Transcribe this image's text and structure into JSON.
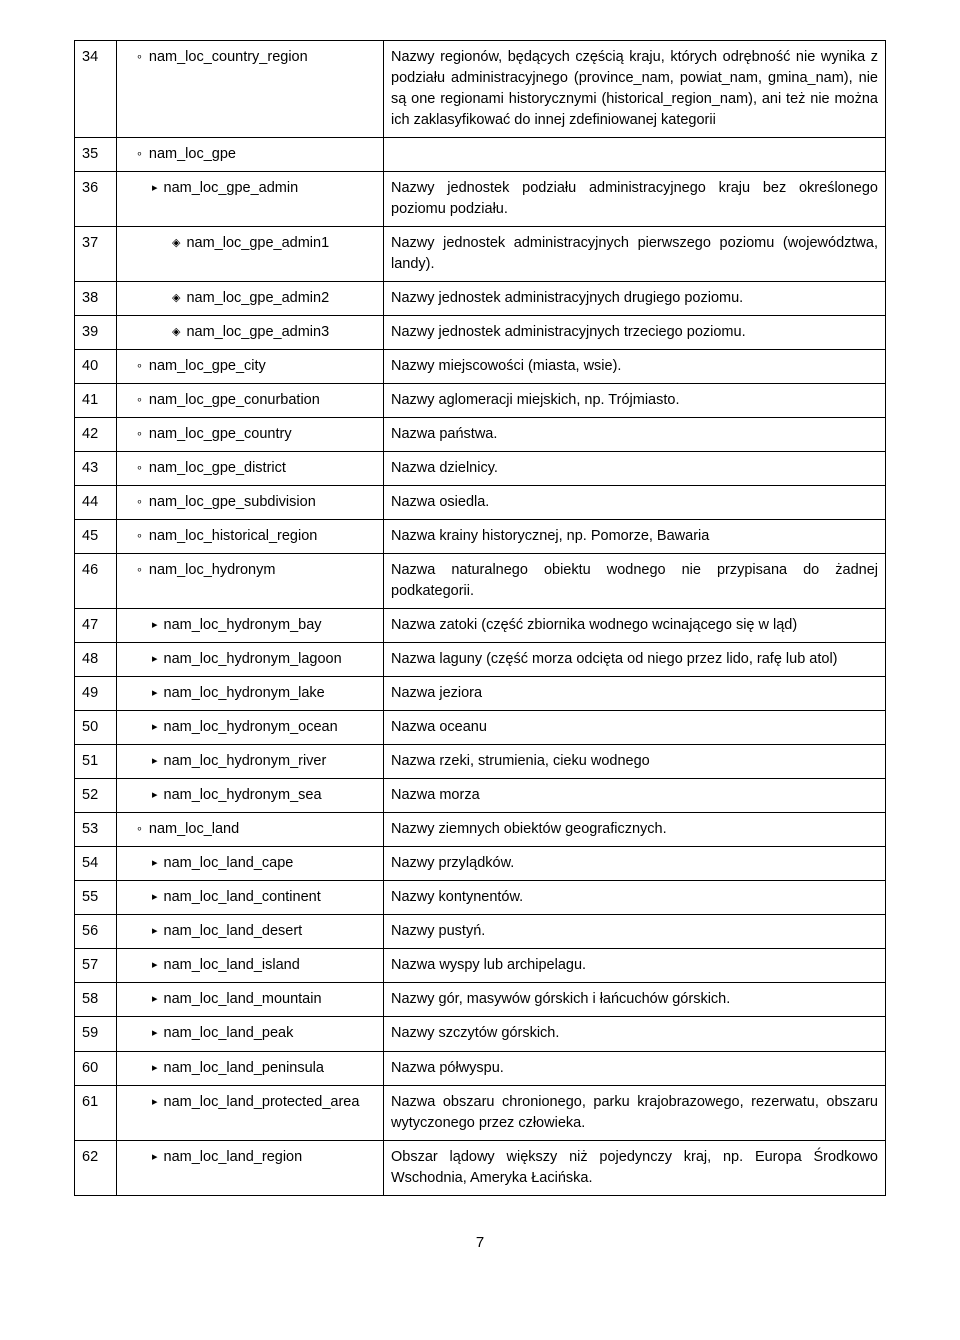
{
  "page_number": "7",
  "bullet_glyphs": {
    "circle": "∘",
    "triangle": "▸",
    "diamond": "◈"
  },
  "rows": [
    {
      "num": "34",
      "indent": 0,
      "bullet": "circle",
      "name": "nam_loc_country_region",
      "desc": "Nazwy regionów, będących częścią kraju, których odrębność nie wynika z podziału administracyjnego (province_nam, powiat_nam, gmina_nam), nie są one regionami historycznymi (historical_region_nam), ani też nie można ich zaklasyfikować do innej zdefiniowanej kategorii",
      "justify": true
    },
    {
      "num": "35",
      "indent": 0,
      "bullet": "circle",
      "name": "nam_loc_gpe",
      "desc": ""
    },
    {
      "num": "36",
      "indent": 1,
      "bullet": "triangle",
      "name": "nam_loc_gpe_admin",
      "desc": "Nazwy jednostek podziału administracyjnego kraju bez określonego poziomu podziału.",
      "justify": true
    },
    {
      "num": "37",
      "indent": 2,
      "bullet": "diamond",
      "name": "nam_loc_gpe_admin1",
      "desc": "Nazwy jednostek administracyjnych pierwszego poziomu (województwa, landy).",
      "justify": true
    },
    {
      "num": "38",
      "indent": 2,
      "bullet": "diamond",
      "name": "nam_loc_gpe_admin2",
      "desc": "Nazwy jednostek administracyjnych drugiego poziomu."
    },
    {
      "num": "39",
      "indent": 2,
      "bullet": "diamond",
      "name": "nam_loc_gpe_admin3",
      "desc": "Nazwy jednostek administracyjnych trzeciego poziomu."
    },
    {
      "num": "40",
      "indent": 0,
      "bullet": "circle",
      "name": "nam_loc_gpe_city",
      "desc": "Nazwy miejscowości (miasta, wsie)."
    },
    {
      "num": "41",
      "indent": 0,
      "bullet": "circle",
      "name": "nam_loc_gpe_conurbation",
      "desc": "Nazwy aglomeracji miejskich, np. Trójmiasto."
    },
    {
      "num": "42",
      "indent": 0,
      "bullet": "circle",
      "name": "nam_loc_gpe_country",
      "desc": "Nazwa państwa."
    },
    {
      "num": "43",
      "indent": 0,
      "bullet": "circle",
      "name": "nam_loc_gpe_district",
      "desc": "Nazwa dzielnicy."
    },
    {
      "num": "44",
      "indent": 0,
      "bullet": "circle",
      "name": "nam_loc_gpe_subdivision",
      "desc": "Nazwa osiedla."
    },
    {
      "num": "45",
      "indent": 0,
      "bullet": "circle",
      "name": "nam_loc_historical_region",
      "desc": "Nazwa krainy historycznej, np. Pomorze, Bawaria"
    },
    {
      "num": "46",
      "indent": 0,
      "bullet": "circle",
      "name": "nam_loc_hydronym",
      "desc": "Nazwa naturalnego obiektu wodnego nie przypisana do żadnej podkategorii.",
      "justify": true
    },
    {
      "num": "47",
      "indent": 1,
      "bullet": "triangle",
      "name": "nam_loc_hydronym_bay",
      "desc": "Nazwa zatoki (część zbiornika wodnego wcinającego się w ląd)"
    },
    {
      "num": "48",
      "indent": 1,
      "bullet": "triangle",
      "name": "nam_loc_hydronym_lagoon",
      "desc": "Nazwa laguny (część morza odcięta od niego przez lido, rafę lub atol)",
      "justify": true
    },
    {
      "num": "49",
      "indent": 1,
      "bullet": "triangle",
      "name": "nam_loc_hydronym_lake",
      "desc": "Nazwa jeziora"
    },
    {
      "num": "50",
      "indent": 1,
      "bullet": "triangle",
      "name": "nam_loc_hydronym_ocean",
      "desc": "Nazwa oceanu"
    },
    {
      "num": "51",
      "indent": 1,
      "bullet": "triangle",
      "name": "nam_loc_hydronym_river",
      "desc": "Nazwa rzeki, strumienia, cieku wodnego"
    },
    {
      "num": "52",
      "indent": 1,
      "bullet": "triangle",
      "name": "nam_loc_hydronym_sea",
      "desc": "Nazwa morza"
    },
    {
      "num": "53",
      "indent": 0,
      "bullet": "circle",
      "name": "nam_loc_land",
      "desc": "Nazwy ziemnych obiektów geograficznych."
    },
    {
      "num": "54",
      "indent": 1,
      "bullet": "triangle",
      "name": "nam_loc_land_cape",
      "desc": "Nazwy przylądków."
    },
    {
      "num": "55",
      "indent": 1,
      "bullet": "triangle",
      "name": "nam_loc_land_continent",
      "desc": "Nazwy kontynentów."
    },
    {
      "num": "56",
      "indent": 1,
      "bullet": "triangle",
      "name": "nam_loc_land_desert",
      "desc": "Nazwy pustyń."
    },
    {
      "num": "57",
      "indent": 1,
      "bullet": "triangle",
      "name": "nam_loc_land_island",
      "desc": "Nazwa wyspy lub archipelagu."
    },
    {
      "num": "58",
      "indent": 1,
      "bullet": "triangle",
      "name": "nam_loc_land_mountain",
      "desc": "Nazwy gór, masywów górskich i łańcuchów górskich."
    },
    {
      "num": "59",
      "indent": 1,
      "bullet": "triangle",
      "name": "nam_loc_land_peak",
      "desc": "Nazwy szczytów górskich."
    },
    {
      "num": "60",
      "indent": 1,
      "bullet": "triangle",
      "name": "nam_loc_land_peninsula",
      "desc": "Nazwa półwyspu."
    },
    {
      "num": "61",
      "indent": 1,
      "bullet": "triangle",
      "name": "nam_loc_land_protected_area",
      "desc": "Nazwa obszaru chronionego, parku krajobrazowego, rezerwatu, obszaru wytyczonego przez człowieka.",
      "justify": true
    },
    {
      "num": "62",
      "indent": 1,
      "bullet": "triangle",
      "name": "nam_loc_land_region",
      "desc": "Obszar lądowy większy niż pojedynczy kraj, np. Europa Środkowo Wschodnia, Ameryka Łacińska.",
      "justify": true
    }
  ]
}
